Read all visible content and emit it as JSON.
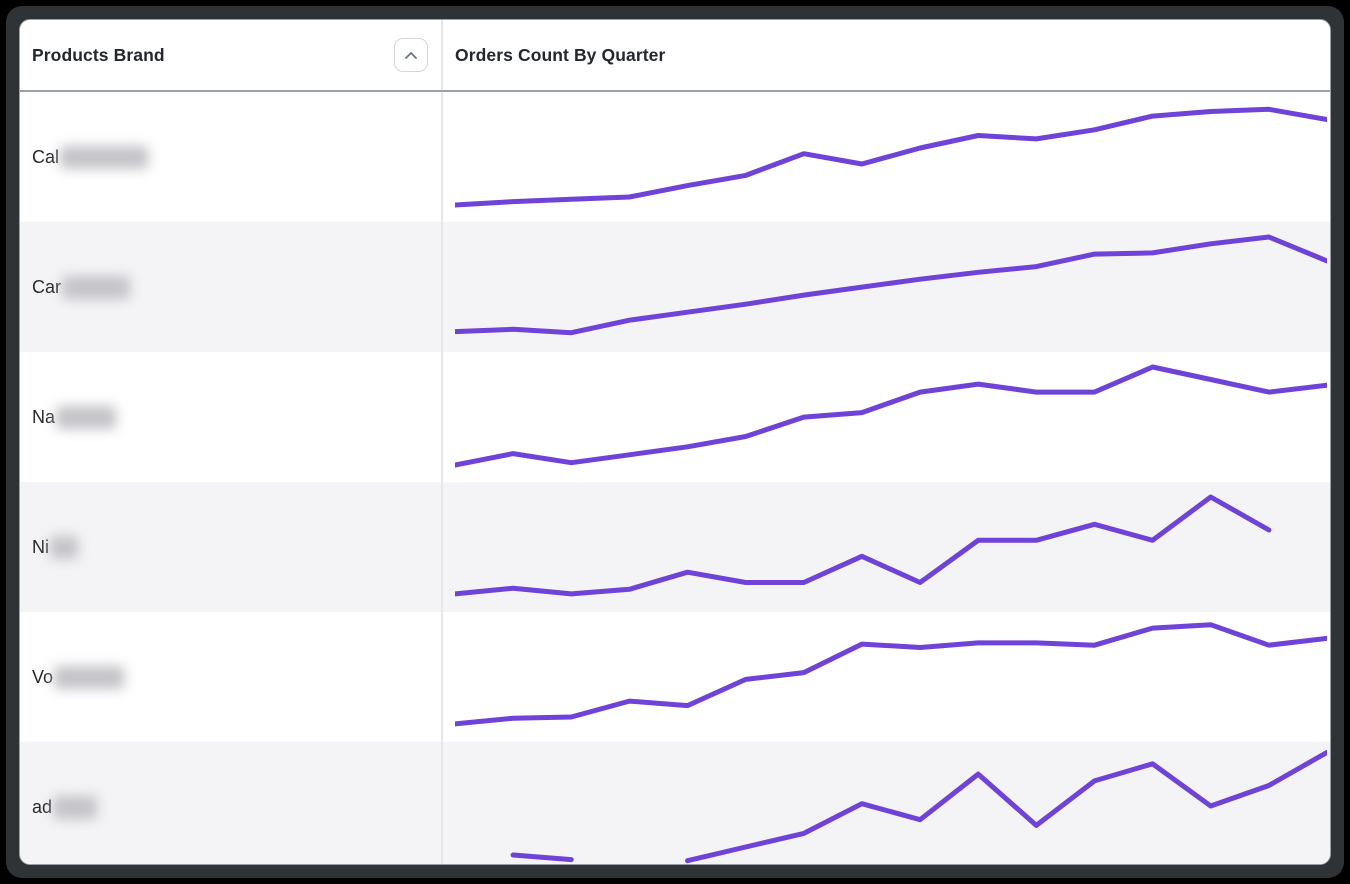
{
  "table": {
    "columns": [
      {
        "label": "Products Brand",
        "sortable": true,
        "sort_icon": "chevron-up-icon"
      },
      {
        "label": "Orders Count By Quarter",
        "sortable": false
      }
    ],
    "rows": [
      {
        "brand_visible": "Cal",
        "brand_redacted": true,
        "redact_width": 88
      },
      {
        "brand_visible": "Car",
        "brand_redacted": true,
        "redact_width": 68
      },
      {
        "brand_visible": "Na",
        "brand_redacted": true,
        "redact_width": 60
      },
      {
        "brand_visible": "Ni",
        "brand_redacted": true,
        "redact_width": 28
      },
      {
        "brand_visible": "Vo",
        "brand_redacted": true,
        "redact_width": 70
      },
      {
        "brand_visible": "ad",
        "brand_redacted": true,
        "redact_width": 44
      }
    ]
  },
  "chart_data": {
    "type": "line",
    "title": "Orders Count By Quarter",
    "xlabel": "Quarter (labels not shown)",
    "ylabel": "Orders Count (relative, no axis shown)",
    "x": [
      1,
      2,
      3,
      4,
      5,
      6,
      7,
      8,
      9,
      10,
      11,
      12,
      13,
      14,
      15,
      16
    ],
    "ylim": [
      0,
      100
    ],
    "grid": false,
    "legend": "none",
    "line_color": "#6F42D8",
    "line_width": 5,
    "series": [
      {
        "name": "Cal…",
        "values": [
          7,
          10,
          12,
          14,
          24,
          33,
          52,
          43,
          57,
          68,
          65,
          73,
          85,
          89,
          91,
          82
        ]
      },
      {
        "name": "Car…",
        "values": [
          10,
          12,
          9,
          20,
          27,
          34,
          42,
          49,
          56,
          62,
          67,
          78,
          79,
          87,
          93,
          72
        ]
      },
      {
        "name": "Na…",
        "values": [
          7,
          17,
          9,
          16,
          23,
          32,
          49,
          53,
          71,
          78,
          71,
          71,
          93,
          82,
          71,
          77
        ]
      },
      {
        "name": "Ni…",
        "values": [
          8,
          13,
          8,
          12,
          27,
          18,
          18,
          41,
          18,
          55,
          55,
          69,
          55,
          93,
          64,
          null
        ]
      },
      {
        "name": "Vo…",
        "values": [
          8,
          13,
          14,
          28,
          24,
          47,
          53,
          78,
          75,
          79,
          79,
          77,
          92,
          95,
          77,
          83
        ]
      },
      {
        "name": "ad…",
        "values": [
          null,
          7,
          3,
          null,
          2,
          14,
          26,
          52,
          38,
          78,
          33,
          72,
          87,
          50,
          68,
          97
        ]
      }
    ]
  },
  "colors": {
    "accent_line": "#6F42D8",
    "row_alt_bg": "#f4f4f6",
    "row_bg": "#ffffff",
    "header_border": "#9aa2a8",
    "column_divider": "#e6e6e9",
    "frame": "#2f3335",
    "text": "#23272e"
  }
}
